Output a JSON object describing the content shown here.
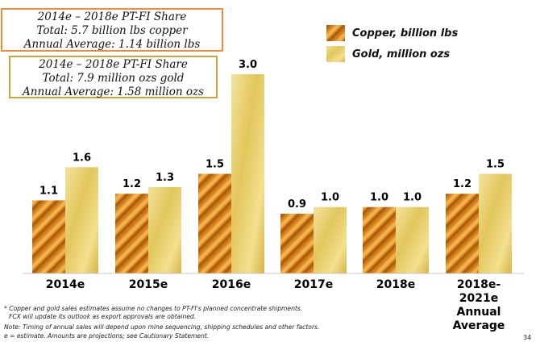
{
  "copper_box": {
    "title": "2014e – 2018e PT-FI Share",
    "total": "Total: 5.7 billion lbs copper",
    "average": "Annual Average: 1.14 billion lbs"
  },
  "gold_box": {
    "title": "2014e – 2018e PT-FI Share",
    "total": "Total: 7.9 million ozs gold",
    "average": "Annual Average: 1.58 million ozs"
  },
  "colors": {
    "copper": "#d7861a",
    "gold": "#e6cf6c",
    "copper_box_border": "#f08a3c",
    "gold_box_border": "#d1a43a"
  },
  "chart_data": {
    "type": "bar",
    "categories": [
      "2014e",
      "2015e",
      "2016e",
      "2017e",
      "2018e",
      "2018e-\n2021e\nAnnual\nAverage"
    ],
    "series": [
      {
        "name": "Copper, billion lbs",
        "values": [
          1.1,
          1.2,
          1.5,
          0.9,
          1.0,
          1.2
        ],
        "labels": [
          "1.1",
          "1.2",
          "1.5",
          "0.9",
          "1.0",
          "1.2"
        ]
      },
      {
        "name": "Gold, million ozs",
        "values": [
          1.6,
          1.3,
          3.0,
          1.0,
          1.0,
          1.5
        ],
        "labels": [
          "1.6",
          "1.3",
          "3.0",
          "1.0",
          "1.0",
          "1.5"
        ]
      }
    ],
    "ylim": [
      0,
      3.0
    ],
    "grid": false,
    "legend": "top-right"
  },
  "footnotes": [
    "* Copper and gold sales estimates assume no changes to PT-FI's planned concentrate shipments.",
    "FCX will update its outlook as export approvals are obtained.",
    "Note: Timing of annual sales will depend upon mine sequencing, shipping schedules and other factors.",
    "e = estimate. Amounts are projections; see Cautionary Statement."
  ],
  "page_number": "34"
}
